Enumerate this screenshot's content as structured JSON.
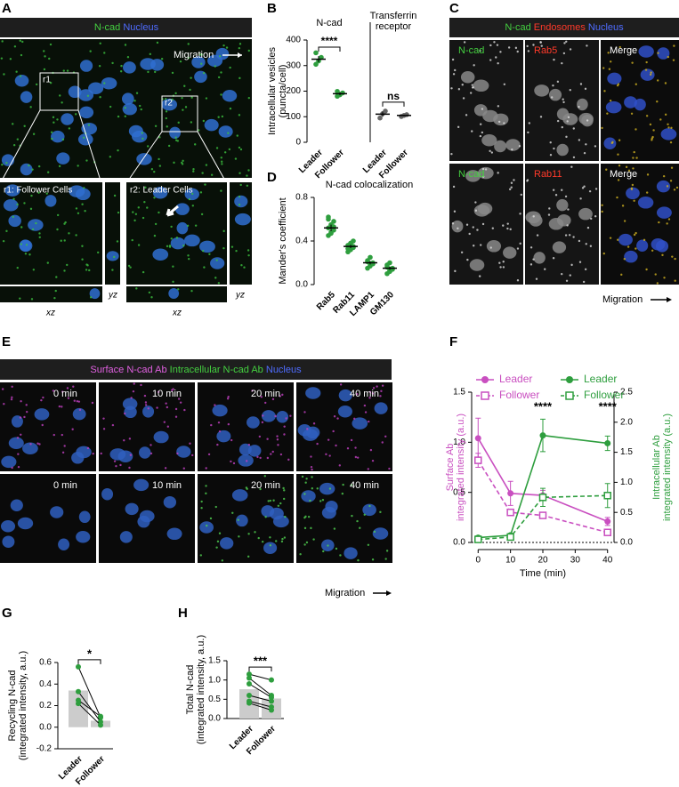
{
  "image_panels": [
    {
      "panel": "A",
      "header": [
        "N-cad",
        "Nucleus"
      ],
      "direction": "Migration",
      "regions": [
        "r1",
        "r2"
      ],
      "insets": [
        "r1: Follower Cells",
        "r2: Leader Cells"
      ],
      "projections": [
        "yz",
        "xz",
        "xz",
        "yz"
      ]
    },
    {
      "panel": "C",
      "header": [
        "N-cad",
        "Endosomes",
        "Nucleus"
      ],
      "rows": [
        [
          "N-cad",
          "Rab5",
          "Merge"
        ],
        [
          "N-cad",
          "Rab11",
          "Merge"
        ]
      ],
      "direction": "Migration"
    },
    {
      "panel": "E",
      "header": [
        "Surface N-cad Ab",
        "Intracellular N-cad Ab",
        "Nucleus"
      ],
      "rows": [
        [
          "0 min",
          "10 min",
          "20 min",
          "40 min"
        ],
        [
          "0 min",
          "10 min",
          "20 min",
          "40 min"
        ]
      ],
      "direction": "Migration"
    }
  ],
  "chart_data": [
    {
      "panel": "B",
      "type": "dotplot",
      "ylabel": [
        "Intracellular vesicles",
        "(puncta/cell)"
      ],
      "ylim": [
        0,
        400
      ],
      "yticks": [
        0,
        100,
        200,
        300,
        400
      ],
      "groups": [
        {
          "label": [
            "N-cad"
          ],
          "color": "#2e9e3e",
          "categories": [
            "Leader",
            "Follower"
          ],
          "values": [
            325,
            190
          ],
          "errors": [
            12,
            6
          ],
          "points": [
            [
              305,
              318,
              332,
              350
            ],
            [
              180,
              186,
              193,
              199
            ]
          ],
          "annotation": "****"
        },
        {
          "label": [
            "Transferrin",
            "receptor"
          ],
          "color": "#666666",
          "categories": [
            "Leader",
            "Follower"
          ],
          "values": [
            110,
            105
          ],
          "errors": [
            10,
            3
          ],
          "points": [
            [
              95,
              112,
              122
            ],
            [
              101,
              105,
              108
            ]
          ],
          "annotation": "ns"
        }
      ]
    },
    {
      "panel": "D",
      "type": "dotplot",
      "title": "N-cad colocalization",
      "ylabel": [
        "Mander's coefficient"
      ],
      "ylim": [
        0,
        0.8
      ],
      "yticks": [
        {
          "value": 0,
          "label": "0.0"
        },
        0.4,
        0.8
      ],
      "groups": [
        {
          "color": "#2e9e3e",
          "categories": [
            "Rab5",
            "Rab11",
            "LAMP1",
            "GM130"
          ],
          "values": [
            0.52,
            0.35,
            0.2,
            0.15
          ],
          "errors": [
            0.03,
            0.015,
            0.015,
            0.015
          ],
          "points": [
            [
              0.45,
              0.48,
              0.5,
              0.52,
              0.55,
              0.58,
              0.62,
              0.47,
              0.53,
              0.6
            ],
            [
              0.3,
              0.32,
              0.34,
              0.36,
              0.38,
              0.4,
              0.33,
              0.37,
              0.35
            ],
            [
              0.15,
              0.18,
              0.2,
              0.22,
              0.25,
              0.19,
              0.21,
              0.17
            ],
            [
              0.1,
              0.12,
              0.15,
              0.18,
              0.2,
              0.14,
              0.16,
              0.13
            ]
          ]
        }
      ]
    },
    {
      "panel": "F",
      "type": "line",
      "x": [
        0,
        10,
        20,
        40
      ],
      "xlim": [
        -2,
        42
      ],
      "xticks": [
        0,
        10,
        20,
        30,
        40
      ],
      "xlabel": "Time (min)",
      "ylabel": [
        "Surface Ab",
        "integrated intensity (a.u.)"
      ],
      "y2label": [
        "Intracellular Ab",
        "integrated intensity (a.u.)"
      ],
      "ylim": [
        0,
        1.5
      ],
      "yticks": [
        {
          "value": 0,
          "label": "0.0"
        },
        0.5,
        {
          "value": 1,
          "label": "1.0"
        },
        1.5
      ],
      "y2lim": [
        0,
        2.5
      ],
      "y2ticks": [
        {
          "value": 0,
          "label": "0.0"
        },
        0.5,
        {
          "value": 1,
          "label": "1.0"
        },
        1.5,
        {
          "value": 2,
          "label": "2.0"
        },
        2.5
      ],
      "annotations": [
        "****",
        "****"
      ],
      "series": [
        {
          "name": "Leader",
          "color": "#c94fc0",
          "marker": "filled",
          "dashed": false,
          "axis": "y",
          "values": [
            1.04,
            0.49,
            0.47,
            0.21
          ],
          "errors": [
            0.2,
            0.12,
            0.05,
            0.04
          ]
        },
        {
          "name": "Follower",
          "color": "#c94fc0",
          "marker": "open",
          "dashed": true,
          "axis": "y",
          "values": [
            0.82,
            0.3,
            0.27,
            0.1
          ],
          "errors": [
            0.07,
            0.03,
            0.03,
            0.02
          ]
        },
        {
          "name": "Leader",
          "color": "#2e9e3e",
          "marker": "filled",
          "dashed": false,
          "axis": "y2",
          "values": [
            0.08,
            0.12,
            1.78,
            1.65
          ],
          "errors": [
            0.03,
            0.03,
            0.27,
            0.12
          ]
        },
        {
          "name": "Follower",
          "color": "#2e9e3e",
          "marker": "open",
          "dashed": true,
          "axis": "y2",
          "values": [
            0.05,
            0.09,
            0.75,
            0.78
          ],
          "errors": [
            0.02,
            0.02,
            0.15,
            0.2
          ]
        }
      ]
    },
    {
      "panel": "G",
      "type": "paired_bar",
      "ylabel": [
        "Recycling N-cad",
        "(integrated intensity, a.u.)"
      ],
      "categories": [
        "Leader",
        "Follower"
      ],
      "values": [
        0.34,
        0.06
      ],
      "ylim": [
        -0.2,
        0.6
      ],
      "yticks": [
        -0.2,
        {
          "value": 0,
          "label": "0.0"
        },
        0.2,
        0.4,
        0.6
      ],
      "pairs": [
        [
          0.56,
          0.09
        ],
        [
          0.33,
          0.05
        ],
        [
          0.25,
          0.1
        ],
        [
          0.22,
          0.02
        ]
      ],
      "annotation": "*",
      "color": "#cccccc",
      "point_color": "#2e9e3e"
    },
    {
      "panel": "H",
      "type": "paired_bar",
      "ylabel": [
        "Total N-cad",
        "(integrated intensity, a.u.)"
      ],
      "categories": [
        "Leader",
        "Follower"
      ],
      "values": [
        0.76,
        0.52
      ],
      "ylim": [
        0,
        1.5
      ],
      "yticks": [
        {
          "value": 0,
          "label": "0.0"
        },
        0.5,
        {
          "value": 1,
          "label": "1.0"
        },
        1.5
      ],
      "pairs": [
        [
          1.15,
          1.0
        ],
        [
          1.05,
          0.6
        ],
        [
          0.9,
          0.55
        ],
        [
          0.6,
          0.45
        ],
        [
          0.45,
          0.3
        ],
        [
          0.4,
          0.22
        ]
      ],
      "annotation": "***",
      "color": "#cccccc",
      "point_color": "#2e9e3e"
    }
  ]
}
